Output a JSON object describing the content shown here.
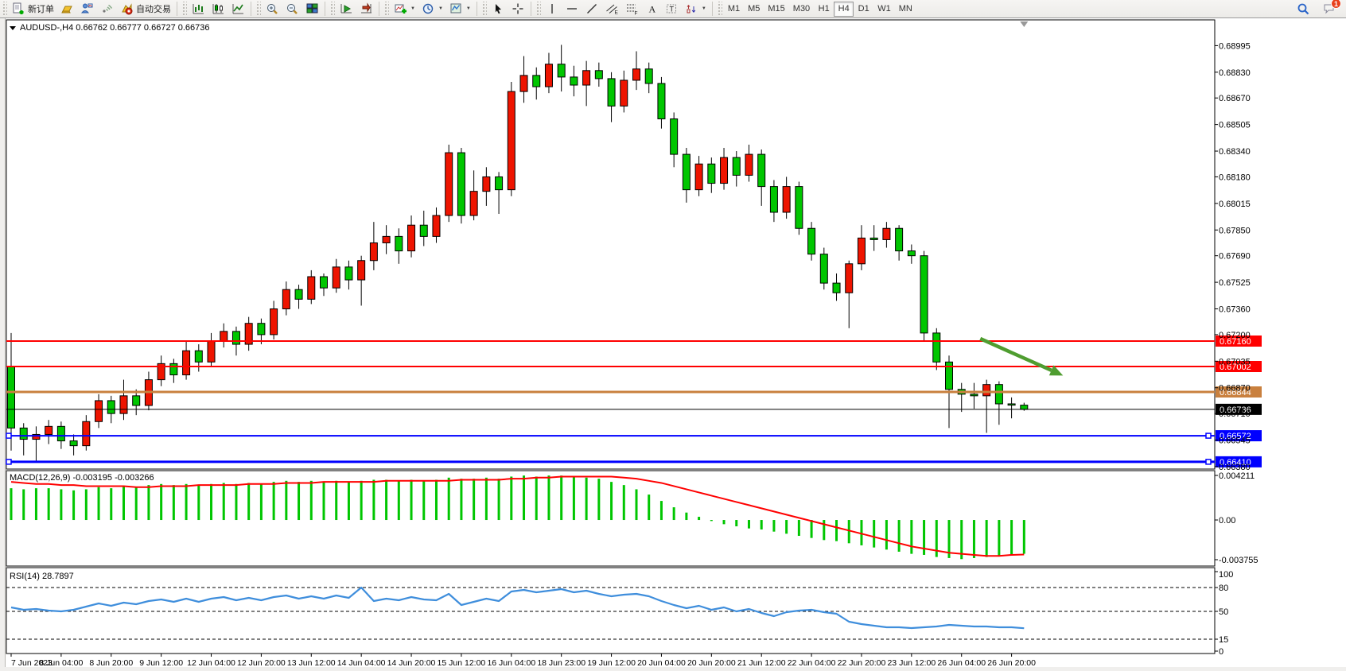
{
  "toolbar": {
    "groups": [
      {
        "name": "trade",
        "items": [
          {
            "name": "new-order-button",
            "icon": "doc-plus",
            "label": "新订单"
          },
          {
            "name": "market-watch-button",
            "icon": "gold-bar",
            "label": ""
          },
          {
            "name": "profiles-button",
            "icon": "person-chart",
            "label": ""
          },
          {
            "name": "signals-button",
            "icon": "signal",
            "label": ""
          },
          {
            "name": "autotrading-button",
            "icon": "autotrade",
            "label": "自动交易"
          }
        ]
      },
      {
        "name": "chart-type",
        "items": [
          {
            "name": "bar-chart-button",
            "icon": "bars",
            "label": ""
          },
          {
            "name": "candlestick-chart-button",
            "icon": "candles",
            "label": ""
          },
          {
            "name": "line-chart-button",
            "icon": "linechart",
            "label": ""
          }
        ]
      },
      {
        "name": "zoom",
        "items": [
          {
            "name": "zoom-in-button",
            "icon": "zoom-in",
            "label": ""
          },
          {
            "name": "zoom-out-button",
            "icon": "zoom-out",
            "label": ""
          },
          {
            "name": "tile-windows-button",
            "icon": "tiles",
            "label": ""
          }
        ]
      },
      {
        "name": "scroll",
        "items": [
          {
            "name": "auto-scroll-button",
            "icon": "autoscroll",
            "label": ""
          },
          {
            "name": "chart-shift-button",
            "icon": "chartshift",
            "label": ""
          }
        ]
      },
      {
        "name": "insert",
        "items": [
          {
            "name": "indicators-button",
            "icon": "indicator",
            "label": "",
            "dropdown": true
          },
          {
            "name": "periods-button",
            "icon": "clock",
            "label": "",
            "dropdown": true
          },
          {
            "name": "templates-button",
            "icon": "template",
            "label": "",
            "dropdown": true
          }
        ]
      },
      {
        "name": "pointer",
        "items": [
          {
            "name": "cursor-button",
            "icon": "cursor",
            "label": ""
          },
          {
            "name": "crosshair-button",
            "icon": "crosshair",
            "label": ""
          }
        ]
      },
      {
        "name": "draw",
        "items": [
          {
            "name": "vertical-line-button",
            "icon": "vline",
            "label": ""
          },
          {
            "name": "horizontal-line-button",
            "icon": "hline",
            "label": ""
          },
          {
            "name": "trendline-button",
            "icon": "trendline",
            "label": ""
          },
          {
            "name": "channel-button",
            "icon": "channel",
            "label": ""
          },
          {
            "name": "fibonacci-button",
            "icon": "fibo",
            "label": ""
          },
          {
            "name": "text-button",
            "icon": "textA",
            "label": ""
          },
          {
            "name": "text-label-button",
            "icon": "textT",
            "label": ""
          },
          {
            "name": "arrows-button",
            "icon": "arrows",
            "label": "",
            "dropdown": true
          }
        ]
      }
    ],
    "timeframes": {
      "items": [
        "M1",
        "M5",
        "M15",
        "M30",
        "H1",
        "H4",
        "D1",
        "W1",
        "MN"
      ],
      "active": "H4"
    },
    "right": [
      {
        "name": "search-button",
        "icon": "search"
      },
      {
        "name": "notifications-button",
        "icon": "chat",
        "badge": "1"
      }
    ]
  },
  "chart": {
    "symbol_label": "AUDUSD-,H4  0.66762 0.66777 0.66727 0.66736",
    "ohlc": {
      "open": "0.66762",
      "high": "0.66777",
      "low": "0.66727",
      "close": "0.66736"
    },
    "price_axis_labels": [
      "0.68995",
      "0.68830",
      "0.68670",
      "0.68505",
      "0.68340",
      "0.68180",
      "0.68015",
      "0.67850",
      "0.67690",
      "0.67525",
      "0.67360",
      "0.67200",
      "0.67035",
      "0.66870",
      "0.66710",
      "0.66545",
      "0.66380"
    ],
    "hlines": [
      {
        "price": 0.6716,
        "label": "0.67160",
        "color": "#ff0000",
        "width": 2,
        "handles": false
      },
      {
        "price": 0.67002,
        "label": "0.67002",
        "color": "#ff0000",
        "width": 2,
        "handles": false
      },
      {
        "price": 0.66844,
        "label": "0.66844",
        "color": "#c9803e",
        "width": 3,
        "handles": false
      },
      {
        "price": 0.66736,
        "label": "0.66736",
        "color": "#000000",
        "width": 1,
        "handles": false
      },
      {
        "price": 0.66572,
        "label": "0.66572",
        "color": "#0000ff",
        "width": 2,
        "handles": true
      },
      {
        "price": 0.6641,
        "label": "0.66410",
        "color": "#0000ff",
        "width": 3,
        "handles": true
      }
    ],
    "arrow": {
      "color": "#4f9d30",
      "from_bar": 77.5,
      "from_price": 0.67175,
      "to_bar": 84.0,
      "to_price": 0.6695
    }
  },
  "indicators": {
    "macd": {
      "label": "MACD(12,26,9) -0.003195 -0.003266",
      "value": "-0.003195",
      "signal_value": "-0.003266",
      "axis_labels": [
        "0.004211",
        "0.00",
        "-0.003755"
      ]
    },
    "rsi": {
      "label": "RSI(14) 28.7897",
      "value": "28.7897",
      "axis_labels": [
        "100",
        "80",
        "50",
        "15",
        "0"
      ],
      "levels": [
        80,
        50,
        15
      ]
    }
  },
  "chart_data": {
    "type": "candlestick",
    "symbol": "AUDUSD-",
    "timeframe": "H4",
    "up_color": "#ee1400",
    "down_color": "#00c600",
    "price_range": {
      "top": 0.69155,
      "bottom": 0.66365
    },
    "x_labels": [
      "7 Jun 2023",
      "8 Jun 04:00",
      "8 Jun 20:00",
      "9 Jun 12:00",
      "12 Jun 04:00",
      "12 Jun 20:00",
      "13 Jun 12:00",
      "14 Jun 04:00",
      "14 Jun 20:00",
      "15 Jun 12:00",
      "16 Jun 04:00",
      "18 Jun 23:00",
      "19 Jun 12:00",
      "20 Jun 04:00",
      "20 Jun 20:00",
      "21 Jun 12:00",
      "22 Jun 04:00",
      "22 Jun 20:00",
      "23 Jun 12:00",
      "26 Jun 04:00",
      "26 Jun 20:00"
    ],
    "x_label_every_n_bars": 4,
    "candles": {
      "open": [
        0.67,
        0.6662,
        0.6655,
        0.6658,
        0.6663,
        0.6654,
        0.6651,
        0.6666,
        0.6679,
        0.6671,
        0.6682,
        0.6676,
        0.6692,
        0.6702,
        0.6695,
        0.671,
        0.6703,
        0.6716,
        0.6722,
        0.6714,
        0.6727,
        0.672,
        0.6736,
        0.6748,
        0.6742,
        0.6756,
        0.6749,
        0.6762,
        0.6754,
        0.6766,
        0.6777,
        0.6781,
        0.6772,
        0.6788,
        0.6781,
        0.6794,
        0.6833,
        0.6794,
        0.6809,
        0.6818,
        0.681,
        0.6871,
        0.6881,
        0.6874,
        0.6888,
        0.688,
        0.6875,
        0.6884,
        0.6879,
        0.6862,
        0.6878,
        0.6885,
        0.6876,
        0.6854,
        0.6832,
        0.681,
        0.6826,
        0.6814,
        0.683,
        0.6819,
        0.6832,
        0.6812,
        0.6796,
        0.6812,
        0.6786,
        0.677,
        0.6752,
        0.6746,
        0.6764,
        0.678,
        0.6779,
        0.6786,
        0.6772,
        0.6769,
        0.6721,
        0.6703,
        0.6686,
        0.6683,
        0.6682,
        0.6689,
        0.6677,
        0.66762
      ],
      "high": [
        0.6721,
        0.6665,
        0.6663,
        0.6667,
        0.6666,
        0.6658,
        0.667,
        0.6683,
        0.6682,
        0.6692,
        0.6686,
        0.6697,
        0.6707,
        0.6705,
        0.6716,
        0.6714,
        0.6721,
        0.6727,
        0.6725,
        0.6731,
        0.673,
        0.6741,
        0.6753,
        0.6751,
        0.676,
        0.6758,
        0.6767,
        0.6766,
        0.6769,
        0.679,
        0.6788,
        0.6786,
        0.6794,
        0.6797,
        0.6799,
        0.6838,
        0.6836,
        0.6822,
        0.6824,
        0.6821,
        0.6877,
        0.6893,
        0.6886,
        0.6895,
        0.69,
        0.6887,
        0.689,
        0.6889,
        0.6883,
        0.6884,
        0.6896,
        0.6889,
        0.688,
        0.6858,
        0.6836,
        0.6831,
        0.683,
        0.6836,
        0.6834,
        0.6838,
        0.6835,
        0.6816,
        0.6818,
        0.6815,
        0.679,
        0.6774,
        0.6758,
        0.6766,
        0.6788,
        0.6788,
        0.679,
        0.6788,
        0.6776,
        0.6772,
        0.6724,
        0.6707,
        0.669,
        0.669,
        0.6692,
        0.6691,
        0.6681,
        0.66777
      ],
      "low": [
        0.6648,
        0.6645,
        0.6641,
        0.6652,
        0.6649,
        0.6645,
        0.6648,
        0.6662,
        0.6665,
        0.6667,
        0.667,
        0.6673,
        0.6688,
        0.669,
        0.6692,
        0.6697,
        0.67,
        0.6712,
        0.6707,
        0.671,
        0.6714,
        0.6717,
        0.6732,
        0.6736,
        0.6739,
        0.6744,
        0.6746,
        0.6748,
        0.6738,
        0.676,
        0.677,
        0.6764,
        0.6768,
        0.6775,
        0.6777,
        0.679,
        0.6789,
        0.6791,
        0.68,
        0.6795,
        0.6806,
        0.6864,
        0.6866,
        0.687,
        0.6871,
        0.6868,
        0.6862,
        0.6874,
        0.6852,
        0.6858,
        0.6872,
        0.687,
        0.6848,
        0.6824,
        0.6802,
        0.6806,
        0.6808,
        0.681,
        0.6812,
        0.6815,
        0.68,
        0.679,
        0.6792,
        0.6782,
        0.6766,
        0.6748,
        0.6741,
        0.6724,
        0.676,
        0.6772,
        0.6774,
        0.6766,
        0.6764,
        0.6716,
        0.6698,
        0.6662,
        0.6672,
        0.6674,
        0.6659,
        0.6664,
        0.6668,
        0.66727
      ],
      "close": [
        0.6662,
        0.6655,
        0.6658,
        0.6663,
        0.6654,
        0.6651,
        0.6666,
        0.6679,
        0.6671,
        0.6682,
        0.6676,
        0.6692,
        0.6702,
        0.6695,
        0.671,
        0.6703,
        0.6716,
        0.6722,
        0.6714,
        0.6727,
        0.672,
        0.6736,
        0.6748,
        0.6742,
        0.6756,
        0.6749,
        0.6762,
        0.6754,
        0.6766,
        0.6777,
        0.6781,
        0.6772,
        0.6788,
        0.6781,
        0.6794,
        0.6833,
        0.6794,
        0.6809,
        0.6818,
        0.681,
        0.6871,
        0.6881,
        0.6874,
        0.6888,
        0.688,
        0.6875,
        0.6884,
        0.6879,
        0.6862,
        0.6878,
        0.6885,
        0.6876,
        0.6854,
        0.6832,
        0.681,
        0.6826,
        0.6814,
        0.683,
        0.6819,
        0.6832,
        0.6812,
        0.6796,
        0.6812,
        0.6786,
        0.677,
        0.6752,
        0.6746,
        0.6764,
        0.678,
        0.6779,
        0.6786,
        0.6772,
        0.6769,
        0.6721,
        0.6703,
        0.6686,
        0.6683,
        0.6682,
        0.6689,
        0.6677,
        0.66762,
        0.66736
      ]
    },
    "macd": {
      "range": {
        "max": 0.004211,
        "min": -0.003755
      },
      "histogram": [
        0.003,
        0.0029,
        0.003,
        0.003,
        0.0029,
        0.0028,
        0.0029,
        0.0031,
        0.003,
        0.0032,
        0.0031,
        0.0033,
        0.0034,
        0.0033,
        0.0034,
        0.0033,
        0.0034,
        0.0035,
        0.0034,
        0.0035,
        0.0034,
        0.0036,
        0.0037,
        0.0036,
        0.0037,
        0.0036,
        0.0037,
        0.0036,
        0.0037,
        0.0038,
        0.0038,
        0.0037,
        0.0038,
        0.0037,
        0.0038,
        0.004,
        0.0039,
        0.0039,
        0.004,
        0.0039,
        0.0041,
        0.0042,
        0.0041,
        0.0042,
        0.0042,
        0.0041,
        0.004,
        0.0039,
        0.0036,
        0.0033,
        0.0029,
        0.0024,
        0.0018,
        0.0012,
        0.0007,
        0.0003,
        -0.0001,
        -0.0004,
        -0.0006,
        -0.0008,
        -0.0009,
        -0.0011,
        -0.0013,
        -0.0015,
        -0.0017,
        -0.0019,
        -0.002,
        -0.0022,
        -0.0024,
        -0.0026,
        -0.0028,
        -0.003,
        -0.0032,
        -0.0033,
        -0.0035,
        -0.0036,
        -0.0037,
        -0.0036,
        -0.0035,
        -0.0034,
        -0.0033,
        -0.003195
      ],
      "signal": [
        0.0036,
        0.0035,
        0.0034,
        0.0034,
        0.0033,
        0.0033,
        0.0032,
        0.0032,
        0.0032,
        0.0032,
        0.0031,
        0.0031,
        0.0032,
        0.0032,
        0.0032,
        0.0033,
        0.0033,
        0.0033,
        0.0033,
        0.0034,
        0.0034,
        0.0034,
        0.0035,
        0.0035,
        0.0035,
        0.0036,
        0.0036,
        0.0036,
        0.0036,
        0.0036,
        0.0037,
        0.0037,
        0.0037,
        0.0037,
        0.0037,
        0.0037,
        0.0038,
        0.0038,
        0.0038,
        0.0038,
        0.0039,
        0.0039,
        0.004,
        0.004,
        0.0041,
        0.0041,
        0.0041,
        0.0041,
        0.0041,
        0.004,
        0.0039,
        0.0037,
        0.0035,
        0.0032,
        0.0029,
        0.0026,
        0.0023,
        0.002,
        0.0017,
        0.0014,
        0.0011,
        0.0008,
        0.0005,
        0.0002,
        -0.0001,
        -0.0004,
        -0.0007,
        -0.001,
        -0.0013,
        -0.0016,
        -0.0019,
        -0.0022,
        -0.0025,
        -0.0027,
        -0.0029,
        -0.0031,
        -0.0032,
        -0.0033,
        -0.0034,
        -0.0034,
        -0.0033,
        -0.003266
      ]
    },
    "rsi": {
      "range": {
        "max": 100,
        "min": 0
      },
      "values": [
        55,
        52,
        53,
        51,
        50,
        52,
        56,
        60,
        57,
        61,
        59,
        63,
        65,
        62,
        66,
        62,
        66,
        68,
        64,
        67,
        64,
        68,
        70,
        66,
        69,
        66,
        70,
        67,
        80,
        63,
        66,
        64,
        68,
        65,
        64,
        72,
        58,
        62,
        66,
        63,
        75,
        77,
        74,
        76,
        78,
        74,
        76,
        72,
        69,
        71,
        72,
        69,
        63,
        58,
        54,
        57,
        52,
        55,
        50,
        53,
        48,
        44,
        49,
        51,
        52,
        49,
        47,
        37,
        34,
        32,
        30,
        30,
        29,
        30,
        31,
        33,
        32,
        31,
        31,
        30,
        30,
        28.8
      ]
    }
  },
  "colors": {
    "up_candle": "#ee1400",
    "down_candle": "#00c600",
    "macd_bar": "#00c600",
    "macd_signal": "#ff0000",
    "rsi_line": "#3f8edc",
    "resistance_red": "#ff0000",
    "support_blue": "#0000ff",
    "pivot_orange": "#c9803e",
    "arrow_green": "#4f9d30"
  }
}
